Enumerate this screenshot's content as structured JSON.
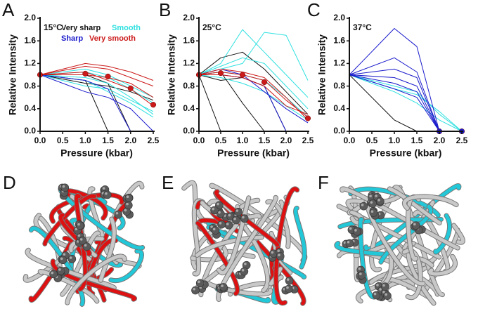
{
  "chart_data": [
    {
      "type": "line",
      "panel": "A",
      "annotation": "15°C",
      "x_label": "Pressure (kbar)",
      "y_label": "Relative Intensity",
      "x": [
        0,
        1,
        1.5,
        2,
        2.5
      ],
      "xlim": [
        0,
        2.5
      ],
      "xticks": [
        {
          "value": 0,
          "label": "0.0"
        },
        0.5,
        {
          "value": 1,
          "label": "1.0"
        },
        1.5,
        {
          "value": 2,
          "label": "2.0"
        },
        2.5
      ],
      "ylim": [
        0,
        2
      ],
      "yticks": [
        {
          "value": 0,
          "label": "0.0"
        },
        0.4,
        0.8,
        1.2,
        1.6,
        {
          "value": 2,
          "label": "2.0"
        }
      ],
      "series": [
        {
          "name": "Very sharp",
          "color": "#111111",
          "lines": [
            [
              1,
              0.85,
              0.8,
              0.7,
              0.55
            ],
            [
              1,
              0.9,
              0,
              null,
              null
            ],
            [
              1,
              1.0,
              0.85,
              0,
              null
            ]
          ]
        },
        {
          "name": "Smooth",
          "color": "#2fe0e0",
          "lines": [
            [
              1,
              1.05,
              0.95,
              0.75,
              0.5
            ],
            [
              1,
              0.95,
              0.85,
              0.6,
              0.3
            ],
            [
              1,
              1.1,
              1.0,
              0.8,
              0.6
            ],
            [
              1,
              0.9,
              0.7,
              0.5,
              0.25
            ],
            [
              1,
              0.8,
              0.75,
              0.55,
              0.35
            ]
          ]
        },
        {
          "name": "Sharp",
          "color": "#1a1acc",
          "lines": [
            [
              1,
              0.9,
              0.75,
              0,
              null
            ],
            [
              1,
              0.7,
              0.6,
              0.4,
              0
            ]
          ]
        },
        {
          "name": "Very smooth",
          "color": "#cc1a1a",
          "lines": [
            [
              1,
              1.15,
              1.1,
              0.95,
              0.8
            ],
            [
              1,
              1.0,
              0.95,
              0.85,
              0.6
            ],
            [
              1,
              1.2,
              1.15,
              1.05,
              0.9
            ],
            [
              1,
              1.05,
              0.9,
              0.75,
              0.45
            ]
          ]
        }
      ],
      "means": {
        "color": "#cc1a1a",
        "values": [
          1,
          1.02,
          0.97,
          0.76,
          0.47
        ]
      }
    },
    {
      "type": "line",
      "panel": "B",
      "annotation": "25°C",
      "x_label": "Pressure (kbar)",
      "y_label": "Relative Intensity",
      "x": [
        0,
        0.5,
        1,
        1.5,
        2,
        2.5
      ],
      "xlim": [
        0,
        2.5
      ],
      "xticks": [
        {
          "value": 0,
          "label": "0.0"
        },
        0.5,
        {
          "value": 1,
          "label": "1.0"
        },
        1.5,
        {
          "value": 2,
          "label": "2.0"
        },
        2.5
      ],
      "ylim": [
        0,
        2
      ],
      "yticks": [
        {
          "value": 0,
          "label": "0.0"
        },
        0.4,
        0.8,
        1.2,
        1.6,
        {
          "value": 2,
          "label": "2.0"
        }
      ],
      "series": [
        {
          "color": "#111111",
          "lines": [
            [
              1,
              1.05,
              0.5,
              0,
              null,
              null
            ],
            [
              1,
              0.9,
              0.95,
              0.8,
              0,
              null
            ],
            [
              1,
              1.3,
              1.4,
              1.1,
              0.7,
              0.3
            ],
            [
              1,
              0,
              null,
              null,
              null,
              null
            ]
          ]
        },
        {
          "color": "#2fe0e0",
          "lines": [
            [
              1,
              1.2,
              1.8,
              1.4,
              1.0,
              0.6
            ],
            [
              1,
              1.1,
              1.2,
              1.75,
              1.7,
              0.9
            ],
            [
              1,
              1.05,
              1.0,
              0.9,
              0.6,
              0.25
            ],
            [
              1,
              0.95,
              0.85,
              0.7,
              0.45,
              0.2
            ],
            [
              1,
              1.15,
              1.3,
              1.2,
              0.8,
              0.4
            ]
          ]
        },
        {
          "color": "#1a1acc",
          "lines": [
            [
              1,
              1.0,
              0.95,
              0.8,
              0,
              null
            ],
            [
              1,
              1.1,
              1.0,
              0.7,
              0.4,
              0.15
            ]
          ]
        },
        {
          "color": "#cc1a1a",
          "lines": [
            [
              1,
              1.05,
              1.0,
              0.9,
              0.55,
              0.25
            ],
            [
              1,
              1.1,
              1.05,
              0.95,
              0.6,
              0.2
            ],
            [
              1,
              1.0,
              0.95,
              0.8,
              0.45,
              0.3
            ]
          ]
        }
      ],
      "means": {
        "color": "#cc1a1a",
        "values": [
          1,
          1.03,
          1.0,
          0.87,
          null,
          0.23
        ]
      }
    },
    {
      "type": "line",
      "panel": "C",
      "annotation": "37°C",
      "x_label": "Pressure (kbar)",
      "y_label": "Relative Intensity",
      "x": [
        0,
        1,
        1.5,
        2,
        2.5
      ],
      "xlim": [
        0,
        2.5
      ],
      "xticks": [
        {
          "value": 0,
          "label": "0.0"
        },
        0.5,
        {
          "value": 1,
          "label": "1.0"
        },
        1.5,
        {
          "value": 2,
          "label": "2.0"
        },
        2.5
      ],
      "ylim": [
        0,
        2
      ],
      "yticks": [
        {
          "value": 0,
          "label": "0.0"
        },
        0.4,
        0.8,
        1.2,
        1.6,
        {
          "value": 2,
          "label": "2.0"
        }
      ],
      "series": [
        {
          "color": "#111111",
          "lines": [
            [
              1,
              0.2,
              0,
              null,
              null
            ]
          ]
        },
        {
          "color": "#2fe0e0",
          "lines": [
            [
              1,
              0.8,
              0.7,
              0.3,
              0
            ],
            [
              1,
              0.7,
              0.5,
              0.2,
              0
            ],
            [
              1,
              0.75,
              0.65,
              0.35,
              0
            ]
          ]
        },
        {
          "color": "#1a1acc",
          "lines": [
            [
              1,
              1.82,
              1.5,
              0,
              null
            ],
            [
              1,
              1.3,
              1.05,
              0,
              null
            ],
            [
              1,
              0.95,
              0.8,
              0,
              null
            ],
            [
              1,
              0.85,
              0.7,
              0,
              null
            ],
            [
              1,
              0.75,
              0.6,
              0,
              null
            ],
            [
              1,
              1.1,
              0.95,
              0,
              null
            ]
          ]
        }
      ],
      "means": {
        "color": "#1a1acc",
        "values": [
          null,
          null,
          null,
          0,
          0
        ]
      }
    }
  ],
  "structures": [
    {
      "label": "D"
    },
    {
      "label": "E"
    },
    {
      "label": "F"
    }
  ]
}
